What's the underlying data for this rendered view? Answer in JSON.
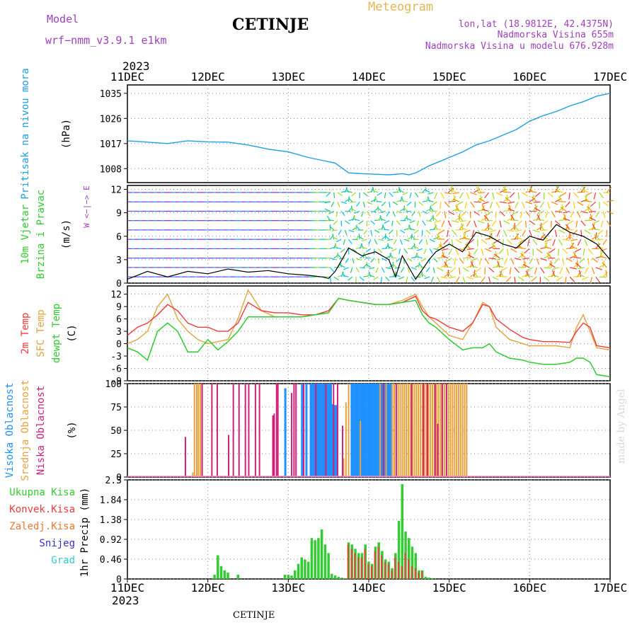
{
  "header": {
    "model_label": "Model",
    "model_name": "wrf−nmm_v3.9.1  e1km",
    "station": "CETINJE",
    "meteogram": "Meteogram",
    "lonlat": "lon,lat (18.9812E, 42.4375N)",
    "altitude": "Nadmorska Visina 655m",
    "model_altitude": "Nadmorska Visina u modelu 676.928m",
    "year_top": "2023",
    "year_bottom": "2023",
    "footer_station": "CETINJE",
    "credit": "made by Angel"
  },
  "colors": {
    "pressure": "#1ea0e6",
    "t2m": "#ee3b3b",
    "sfc": "#e6a23c",
    "dewpt": "#2ecc2e",
    "high": "#1e90ff",
    "mid": "#e6a23c",
    "low": "#d0207a",
    "precip_total": "#33cc33",
    "precip_conv": "#ee3b3b",
    "precip_frozen": "#ee7733",
    "snow": "#3333cc",
    "grad": "#33cccc",
    "header_purple": "#a040c0",
    "header_orange": "#e6b450"
  },
  "chart_data": [
    {
      "type": "line",
      "panel": "pressure",
      "ylabel": [
        "Pritisak na nivou mora",
        "(hPa)"
      ],
      "ylim": [
        1003,
        1038
      ],
      "yticks": [
        1008,
        1017,
        1026,
        1035
      ],
      "xlim": [
        0,
        144
      ],
      "xlabel_ticks": [
        "11DEC",
        "12DEC",
        "13DEC",
        "14DEC",
        "15DEC",
        "16DEC",
        "17DEC"
      ],
      "series": [
        {
          "x": [
            0,
            6,
            12,
            18,
            24,
            30,
            36,
            42,
            48,
            54,
            58,
            62,
            66,
            70,
            74,
            78,
            82,
            84,
            86,
            90,
            96,
            100,
            104,
            108,
            112,
            116,
            120,
            124,
            128,
            132,
            136,
            140,
            144
          ],
          "y": [
            1018,
            1017.5,
            1017,
            1018,
            1017.6,
            1017.5,
            1016.5,
            1015,
            1014,
            1012,
            1011,
            1010,
            1006.5,
            1006.2,
            1006,
            1005.8,
            1006.2,
            1005.8,
            1006.5,
            1009,
            1012,
            1014,
            1016.5,
            1018,
            1020,
            1022,
            1025,
            1027,
            1028.5,
            1030.5,
            1032,
            1034,
            1035
          ]
        }
      ]
    },
    {
      "type": "line",
      "panel": "wind",
      "ylabel": [
        "10m Vjetar",
        "Brzina i Pravac",
        "(m/s)"
      ],
      "compass": "W <−|−> E",
      "ylim": [
        0,
        12.5
      ],
      "yticks": [
        0,
        3,
        6,
        9,
        12
      ],
      "series": [
        {
          "name": "",
          "x": [
            0,
            6,
            12,
            18,
            24,
            30,
            36,
            42,
            48,
            54,
            58,
            60,
            62,
            64,
            66,
            70,
            74,
            78,
            80,
            82,
            86,
            90,
            92,
            96,
            100,
            104,
            108,
            112,
            116,
            120,
            124,
            128,
            132,
            136,
            140,
            144
          ],
          "y": [
            0.5,
            1.5,
            0.8,
            1.5,
            1.2,
            1.8,
            1.4,
            1.6,
            1.2,
            1.0,
            0.8,
            0.6,
            1.5,
            3.0,
            4.5,
            3.5,
            4.0,
            3.0,
            0.8,
            3.5,
            0.5,
            3.0,
            4.0,
            5.0,
            4.0,
            6.5,
            6.0,
            5.0,
            4.5,
            6.0,
            5.5,
            7.5,
            6.5,
            6.0,
            5.0,
            3.0
          ]
        }
      ]
    },
    {
      "type": "line",
      "panel": "temperature",
      "ylabel": [
        "2m Temp",
        "SFC Temp",
        "dewpt Temp",
        "(C)"
      ],
      "ylim": [
        -9,
        14
      ],
      "yticks": [
        -9,
        -6,
        -3,
        0,
        3,
        6,
        9,
        12
      ],
      "series": [
        {
          "name": "2m Temp",
          "x": [
            0,
            3,
            6,
            9,
            12,
            15,
            18,
            21,
            24,
            27,
            30,
            33,
            36,
            40,
            44,
            48,
            52,
            56,
            60,
            63,
            66,
            70,
            74,
            78,
            82,
            86,
            88,
            90,
            92,
            96,
            100,
            103,
            106,
            108,
            110,
            114,
            118,
            120,
            124,
            128,
            132,
            134,
            136,
            138,
            140,
            144
          ],
          "y": [
            2,
            4,
            5,
            7,
            9.5,
            8,
            5,
            4,
            4,
            3,
            3,
            5,
            10,
            8,
            7.5,
            7.5,
            7,
            7,
            8,
            11,
            10.5,
            10,
            9.5,
            9.5,
            10,
            11.5,
            8,
            6.5,
            6,
            4,
            3,
            5,
            9.5,
            9,
            6,
            3.5,
            1.5,
            1,
            0.5,
            0.5,
            0.3,
            3,
            5,
            4,
            -0.5,
            -1
          ]
        },
        {
          "name": "SFC Temp",
          "x": [
            0,
            3,
            6,
            9,
            12,
            15,
            18,
            21,
            24,
            27,
            30,
            33,
            36,
            40,
            44,
            48,
            52,
            56,
            60,
            63,
            66,
            70,
            74,
            78,
            82,
            86,
            88,
            90,
            92,
            96,
            100,
            103,
            106,
            108,
            110,
            114,
            118,
            120,
            124,
            128,
            132,
            134,
            136,
            138,
            140,
            144
          ],
          "y": [
            0,
            1,
            3,
            9,
            12,
            6,
            3,
            1,
            0,
            0.5,
            1,
            6,
            13,
            8,
            6.5,
            6.5,
            6.5,
            7,
            7.5,
            11,
            10.5,
            10,
            9.5,
            9.5,
            10.5,
            12,
            9,
            6.5,
            5,
            2,
            1,
            5,
            10,
            9,
            4,
            1,
            0,
            -0.5,
            -0.5,
            -0.5,
            -1,
            4,
            7,
            3,
            -1,
            -1.5
          ]
        },
        {
          "name": "dewpt Temp",
          "x": [
            0,
            3,
            6,
            9,
            12,
            15,
            18,
            21,
            24,
            27,
            30,
            33,
            36,
            40,
            44,
            48,
            52,
            56,
            60,
            63,
            66,
            70,
            74,
            78,
            82,
            86,
            88,
            90,
            92,
            96,
            100,
            103,
            106,
            108,
            110,
            114,
            118,
            120,
            124,
            128,
            132,
            134,
            136,
            138,
            140,
            144
          ],
          "y": [
            -1,
            -2,
            -4,
            3,
            5,
            3,
            -2,
            -2,
            1,
            -1.5,
            0.5,
            3,
            6.5,
            6.5,
            6.5,
            6.5,
            6.5,
            7,
            7.5,
            11,
            10.5,
            10,
            9.5,
            9.5,
            10,
            10.5,
            7,
            5,
            4,
            1,
            -1.5,
            -1,
            -1,
            0,
            -2,
            -3.5,
            -4,
            -4.5,
            -5,
            -5,
            -4.5,
            -3.5,
            -3.5,
            -4.5,
            -7.5,
            -8
          ]
        }
      ]
    },
    {
      "type": "bar",
      "panel": "cloud",
      "ylabel": [
        "Visoka Oblacnost",
        "Srednja Oblacnost",
        "Niska Oblacnost",
        "(%)"
      ],
      "ylim": [
        0,
        100
      ],
      "yticks": [
        0,
        25,
        50,
        75,
        100
      ],
      "series": [
        {
          "name": "Visoka Oblacnost",
          "x": [
            47,
            52,
            53.3,
            54.6,
            55.2,
            55.8,
            56.4,
            57,
            57.6,
            58.2,
            58.8,
            59.4,
            60,
            60.6,
            61.2,
            61.8,
            62.4,
            66.8,
            67.4,
            68,
            68.6,
            69.2,
            69.8,
            70.4,
            71,
            71.6,
            72.2,
            72.8,
            73.4,
            74,
            74.6,
            75.2,
            75.8,
            76.4,
            77,
            77.6,
            78.2,
            78.8
          ],
          "y": [
            95,
            100,
            100,
            100,
            100,
            100,
            100,
            100,
            100,
            100,
            100,
            100,
            100,
            100,
            78,
            77,
            77,
            100,
            100,
            100,
            100,
            100,
            100,
            100,
            100,
            100,
            100,
            100,
            100,
            100,
            100,
            100,
            100,
            100,
            100,
            100,
            100,
            100
          ]
        },
        {
          "name": "Srednja Oblacnost",
          "x": [
            19.5,
            20,
            20.7,
            21.2,
            21.8,
            64.5,
            65.2,
            66,
            69.5,
            75.4,
            77.2,
            79,
            79.6,
            80.2,
            80.8,
            81.4,
            82,
            82.6,
            83.2,
            83.8,
            84.4,
            85,
            85.6,
            86.2,
            86.8,
            87.4,
            88,
            88.6,
            89.2,
            89.8,
            90.4,
            91,
            91.6,
            92.2,
            92.8,
            93.4,
            94,
            94.6,
            95.2,
            95.8,
            96.4,
            97,
            97.6,
            98.2,
            98.8,
            99.4,
            100,
            100.6,
            101.2
          ],
          "y": [
            5,
            100,
            100,
            100,
            100,
            20,
            80,
            100,
            60,
            100,
            100,
            100,
            100,
            100,
            100,
            100,
            100,
            100,
            100,
            100,
            100,
            100,
            100,
            100,
            100,
            100,
            100,
            100,
            100,
            100,
            100,
            100,
            100,
            100,
            100,
            100,
            100,
            100,
            100,
            100,
            100,
            100,
            100,
            100,
            100,
            100,
            100,
            100,
            100
          ]
        },
        {
          "name": "Niska Oblacnost",
          "x": [
            17.3,
            22.3,
            25.2,
            26.8,
            30.2,
            31.6,
            33.3,
            35.2,
            36.2,
            38.2,
            39.4,
            43.4,
            43.8,
            44.5,
            44.9,
            49,
            49.7,
            50.3,
            52.6,
            56.2,
            59.2,
            61.5,
            62.7,
            64.2,
            76.4,
            80.2,
            84.8,
            88.3,
            89.5,
            91.8,
            92.6,
            93.9,
            95.2
          ],
          "y": [
            43,
            100,
            100,
            100,
            45,
            100,
            100,
            100,
            100,
            100,
            100,
            66,
            68,
            100,
            100,
            90,
            100,
            100,
            100,
            100,
            100,
            100,
            100,
            55,
            100,
            100,
            100,
            100,
            100,
            100,
            57,
            100,
            100
          ]
        }
      ]
    },
    {
      "type": "bar",
      "panel": "precip",
      "ylabel": [
        "1hr Precip (mm)"
      ],
      "legend": [
        "Ukupna Kisa",
        "Konvek.Kisa",
        "Zaledj.Kisa",
        "Snijeg",
        "Grad"
      ],
      "ylim": [
        0,
        2.3
      ],
      "yticks": [
        0,
        0.46,
        0.92,
        1.38,
        1.84,
        2.3
      ],
      "series": [
        {
          "name": "Ukupna Kisa",
          "x": [
            26,
            27,
            28,
            29,
            30,
            33,
            47,
            48,
            49,
            50,
            51,
            52,
            53,
            54,
            55,
            56,
            57,
            58,
            59,
            60,
            61,
            62,
            63,
            64,
            65,
            66,
            67,
            68,
            69,
            70,
            71,
            72,
            73,
            74,
            75,
            76,
            77,
            78,
            79,
            80,
            81,
            82,
            83,
            84,
            85,
            86,
            87,
            88,
            89,
            90,
            91
          ],
          "y": [
            0.1,
            0.55,
            0.3,
            0.2,
            0.15,
            0.1,
            0.1,
            0.1,
            0.08,
            0.2,
            0.35,
            0.5,
            0.45,
            0.4,
            0.95,
            0.9,
            0.95,
            1.15,
            0.8,
            0.6,
            0.12,
            0.08,
            0.05,
            0.03,
            0.02,
            0.85,
            0.8,
            0.7,
            0.6,
            0.6,
            0.8,
            0.4,
            0.35,
            0.75,
            0.85,
            0.65,
            0.45,
            0.4,
            0.25,
            0.6,
            1.35,
            2.2,
            1.1,
            0.95,
            0.75,
            0.6,
            0.2,
            0.2,
            0.05,
            0.03,
            0.02
          ]
        },
        {
          "name": "Konvek.Kisa",
          "x": [
            66,
            67,
            68,
            69,
            70,
            71,
            72,
            73,
            74,
            75,
            76,
            77,
            78,
            79,
            80,
            81,
            82,
            83,
            84,
            85,
            86,
            87,
            88
          ],
          "y": [
            0.8,
            0.7,
            0.6,
            0.5,
            0.5,
            0.7,
            0.35,
            0.3,
            0.65,
            0.75,
            0.55,
            0.4,
            0.35,
            0.2,
            0.5,
            0.4,
            0.3,
            0.6,
            0.45,
            0.3,
            0.25,
            0.15,
            0.18
          ]
        }
      ]
    }
  ]
}
